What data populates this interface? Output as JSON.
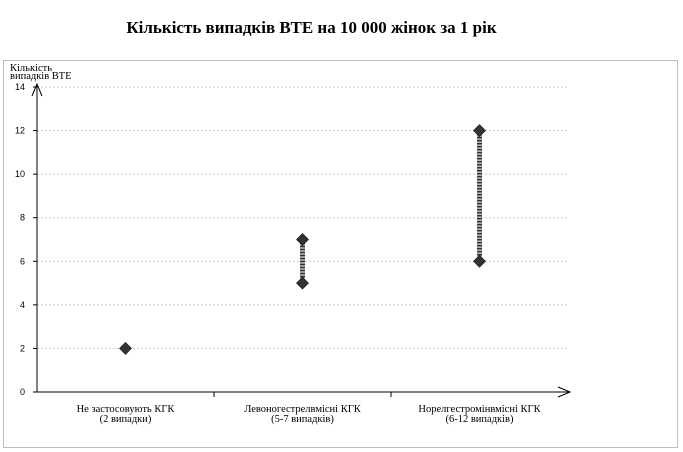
{
  "chart_data": {
    "type": "scatter",
    "title": "Кількість випадків ВТЕ на 10 000 жінок за 1 рік",
    "ylabel_lines": [
      "Кількість",
      "випадків ВТЕ"
    ],
    "ylim": [
      0,
      14
    ],
    "yticks": [
      0,
      2,
      4,
      6,
      8,
      10,
      12,
      14
    ],
    "categories": [
      {
        "line1": "Не застосовують КГК",
        "line2": "(2 випадки)"
      },
      {
        "line1": "Левоногестрелвмісні КГК",
        "line2": "(5-7 випадків)"
      },
      {
        "line1": "Норелгестромінвмісні КГК",
        "line2": "(6-12 випадків)"
      }
    ],
    "ranges": [
      {
        "low": 2,
        "high": 2
      },
      {
        "low": 5,
        "high": 7
      },
      {
        "low": 6,
        "high": 12
      }
    ],
    "grid": true,
    "marker_color": "#333333"
  }
}
